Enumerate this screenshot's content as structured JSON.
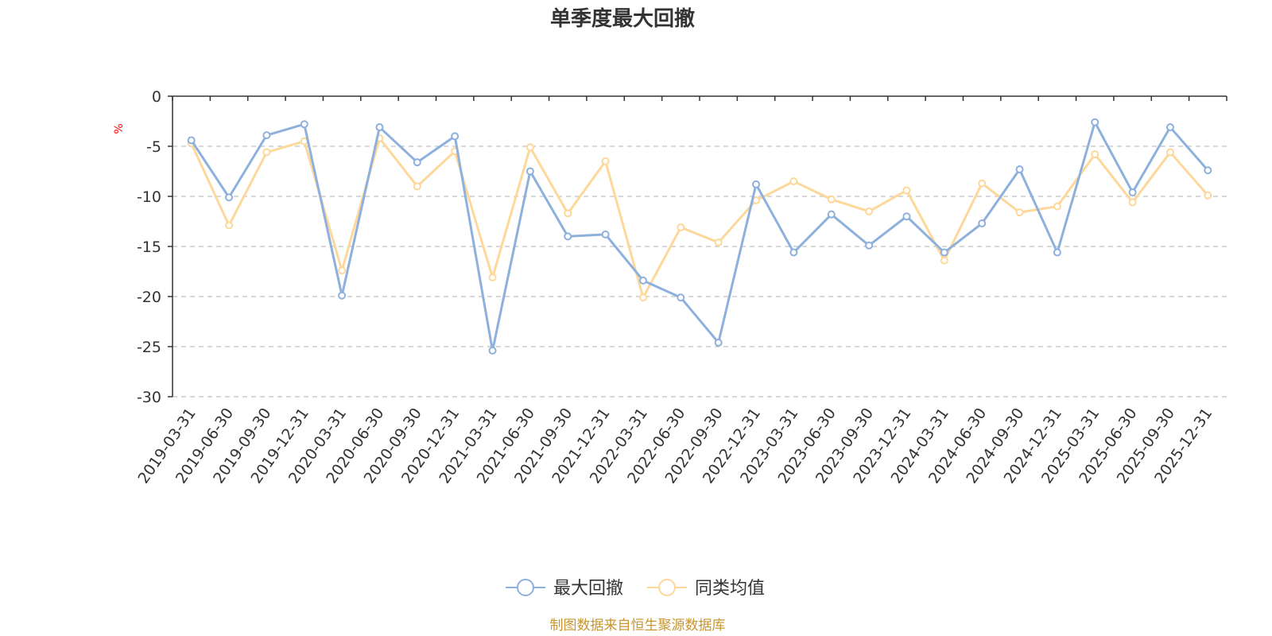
{
  "chart_data": {
    "type": "line",
    "title": "单季度最大回撤",
    "ylabel": "%",
    "ylim": [
      -30,
      0
    ],
    "yticks": [
      "0",
      "-5",
      "-10",
      "-15",
      "-20",
      "-25",
      "-30"
    ],
    "categories": [
      "2019-03-31",
      "2019-06-30",
      "2019-09-30",
      "2019-12-31",
      "2020-03-31",
      "2020-06-30",
      "2020-09-30",
      "2020-12-31",
      "2021-03-31",
      "2021-06-30",
      "2021-09-30",
      "2021-12-31",
      "2022-03-31",
      "2022-06-30",
      "2022-09-30",
      "2022-12-31",
      "2023-03-31",
      "2023-06-30",
      "2023-09-30",
      "2023-12-31",
      "2024-03-31",
      "2024-06-30",
      "2024-09-30",
      "2024-12-31",
      "2025-03-31",
      "2025-06-30",
      "2025-09-30",
      "2025-12-31"
    ],
    "series": [
      {
        "name": "最大回撤",
        "color": "#8eb0dc",
        "values": [
          -4.4,
          -10.1,
          -3.9,
          -2.8,
          -19.9,
          -3.1,
          -6.6,
          -4.0,
          -25.4,
          -7.5,
          -14.0,
          -13.8,
          -18.4,
          -20.1,
          -24.6,
          -8.8,
          -15.6,
          -11.8,
          -14.9,
          -12.0,
          -15.6,
          -12.7,
          -7.3,
          -15.6,
          -2.6,
          -9.6,
          -3.1,
          -7.4
        ]
      },
      {
        "name": "同类均值",
        "color": "#fdd89a",
        "values": [
          -4.7,
          -12.9,
          -5.6,
          -4.5,
          -17.4,
          -4.2,
          -9.0,
          -5.5,
          -18.1,
          -5.1,
          -11.7,
          -6.5,
          -20.1,
          -13.1,
          -14.6,
          -10.4,
          -8.5,
          -10.3,
          -11.5,
          -9.4,
          -16.4,
          -8.7,
          -11.6,
          -11.0,
          -5.8,
          -10.6,
          -5.6,
          -9.9
        ]
      }
    ],
    "grid": true,
    "legend_position": "bottom-center"
  },
  "source_note": "制图数据来自恒生聚源数据库",
  "colors": {
    "axis": "#333333",
    "grid": "#cccccc",
    "unit": "#ff0000",
    "source": "#c8952f"
  }
}
